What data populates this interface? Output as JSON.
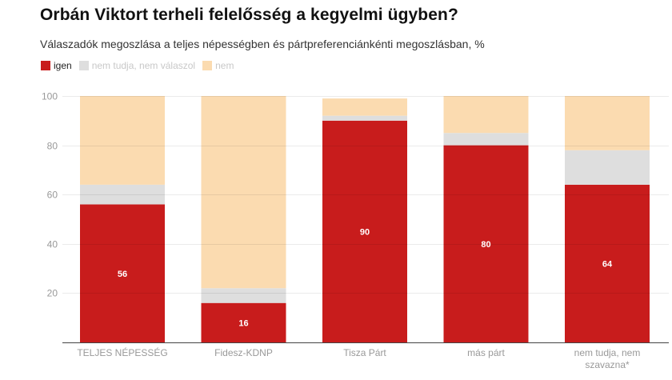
{
  "chart_data": {
    "type": "bar",
    "stacked": true,
    "title": "Orbán Viktort terheli felelősség a kegyelmi ügyben?",
    "subtitle": "Válaszadók megoszlása a teljes népességben és pártpreferenciánkénti megoszlásban, %",
    "xlabel": "",
    "ylabel": "",
    "ylim": [
      0,
      100
    ],
    "yticks": [
      20,
      40,
      60,
      80,
      100
    ],
    "grid": true,
    "legend_position": "top-left",
    "categories": [
      [
        "TELJES NÉPESSÉG"
      ],
      [
        "Fidesz-KDNP"
      ],
      [
        "Tisza Párt"
      ],
      [
        "más párt"
      ],
      [
        "nem tudja, nem",
        "szavazna*"
      ]
    ],
    "series": [
      {
        "name": "igen",
        "color": "#c81c1c",
        "values": [
          56,
          16,
          90,
          80,
          64
        ],
        "show_labels": true
      },
      {
        "name": "nem tudja, nem válaszol",
        "color": "#dedede",
        "values": [
          8,
          6,
          2,
          5,
          14
        ],
        "show_labels": false
      },
      {
        "name": "nem",
        "color": "#fbdbb0",
        "values": [
          36,
          78,
          7,
          15,
          22
        ],
        "show_labels": false
      }
    ]
  }
}
